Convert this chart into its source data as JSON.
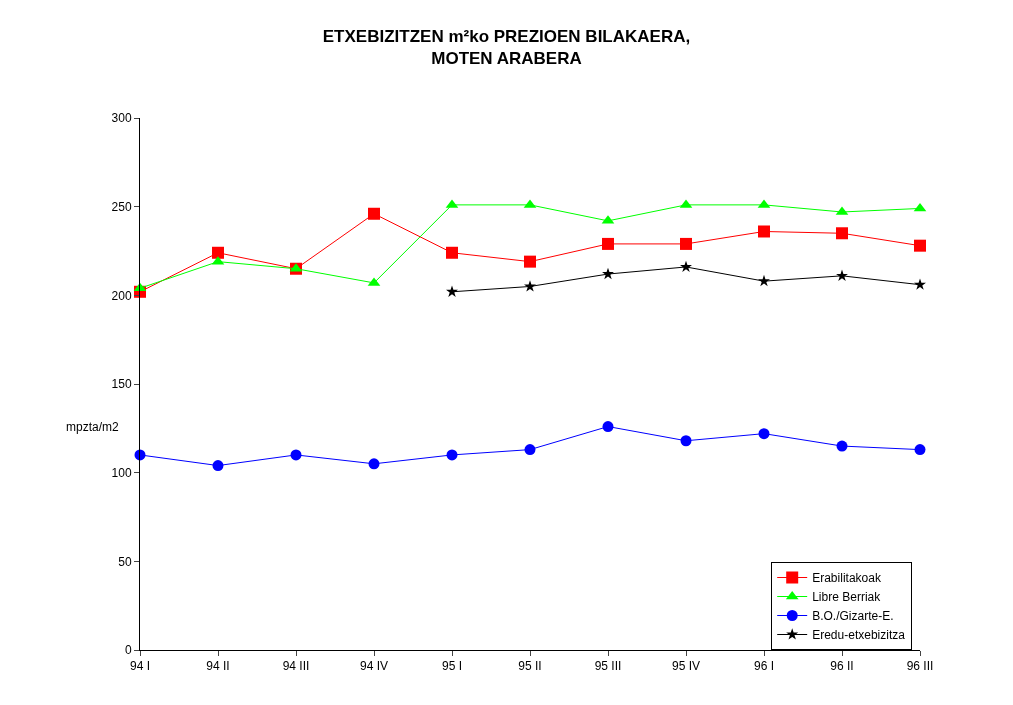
{
  "chart_data": {
    "type": "line",
    "title": "ETXEBIZITZEN m²ko PREZIOEN BILAKAERA,\nMOTEN ARABERA",
    "ylabel": "mpzta/m2",
    "categories": [
      "94 I",
      "94 II",
      "94 III",
      "94 IV",
      "95 I",
      "95 II",
      "95 III",
      "95 IV",
      "96 I",
      "96 II",
      "96 III"
    ],
    "ylim": [
      0,
      300
    ],
    "yticks": [
      0,
      50,
      100,
      150,
      200,
      250,
      300
    ],
    "legend": "bottom right",
    "line_style": "solid",
    "series": [
      {
        "name": "Erabilitakoak",
        "color": "#ff0000",
        "marker": "square",
        "values": [
          202,
          224,
          215,
          246,
          224,
          219,
          229,
          229,
          236,
          235,
          228
        ]
      },
      {
        "name": "Libre Berriak",
        "color": "#00ff00",
        "marker": "triangle",
        "values": [
          204,
          219,
          215,
          207,
          251,
          251,
          242,
          251,
          251,
          247,
          249
        ]
      },
      {
        "name": "B.O./Gizarte-E.",
        "color": "#0000ff",
        "marker": "circle",
        "values": [
          110,
          104,
          110,
          105,
          110,
          113,
          126,
          118,
          122,
          115,
          113
        ]
      },
      {
        "name": "Eredu-etxebizitza",
        "color": "#000000",
        "marker": "star",
        "values": [
          null,
          null,
          null,
          null,
          202,
          205,
          212,
          216,
          208,
          211,
          206
        ]
      }
    ]
  }
}
